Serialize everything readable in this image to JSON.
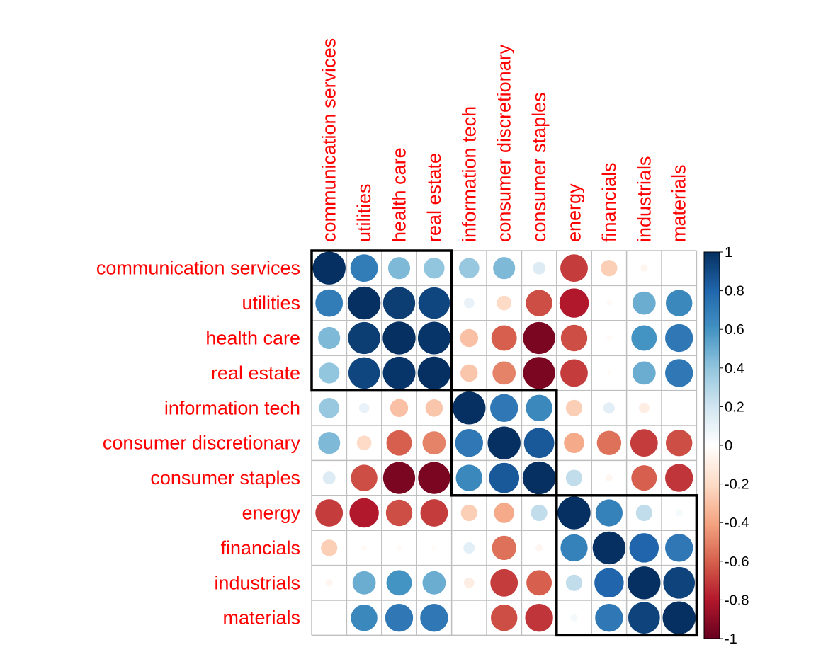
{
  "chart_data": {
    "type": "heatmap",
    "variables": [
      "communication services",
      "utilities",
      "health care",
      "real estate",
      "information tech",
      "consumer discretionary",
      "consumer staples",
      "energy",
      "financials",
      "industrials",
      "materials"
    ],
    "matrix": [
      [
        1.0,
        0.7,
        0.45,
        0.4,
        0.38,
        0.45,
        0.15,
        -0.7,
        -0.25,
        -0.05,
        0.0
      ],
      [
        0.7,
        1.0,
        0.95,
        0.92,
        0.1,
        -0.2,
        -0.65,
        -0.8,
        -0.03,
        0.5,
        0.65
      ],
      [
        0.45,
        0.95,
        1.0,
        0.98,
        -0.3,
        -0.6,
        -0.95,
        -0.65,
        -0.03,
        0.6,
        0.72
      ],
      [
        0.4,
        0.92,
        0.98,
        1.0,
        -0.28,
        -0.5,
        -0.95,
        -0.7,
        -0.02,
        0.5,
        0.72
      ],
      [
        0.38,
        0.1,
        -0.3,
        -0.28,
        1.0,
        0.72,
        0.65,
        -0.25,
        0.12,
        -0.1,
        0.0
      ],
      [
        0.45,
        -0.2,
        -0.6,
        -0.5,
        0.72,
        1.0,
        0.85,
        -0.38,
        -0.55,
        -0.7,
        -0.65
      ],
      [
        0.15,
        -0.65,
        -0.95,
        -0.95,
        0.65,
        0.85,
        1.0,
        0.25,
        -0.05,
        -0.6,
        -0.72
      ],
      [
        -0.7,
        -0.8,
        -0.65,
        -0.7,
        -0.25,
        -0.38,
        0.25,
        1.0,
        0.68,
        0.25,
        0.05
      ],
      [
        -0.25,
        -0.03,
        -0.03,
        -0.02,
        0.12,
        -0.55,
        -0.05,
        0.68,
        1.0,
        0.8,
        0.72
      ],
      [
        -0.05,
        0.5,
        0.6,
        0.5,
        -0.1,
        -0.7,
        -0.6,
        0.25,
        0.8,
        1.0,
        0.93
      ],
      [
        0.0,
        0.65,
        0.72,
        0.72,
        0.0,
        -0.65,
        -0.72,
        0.05,
        0.72,
        0.93,
        1.0
      ]
    ],
    "clusters": [
      [
        0,
        3
      ],
      [
        4,
        6
      ],
      [
        7,
        10
      ]
    ],
    "colorbar": {
      "range": [
        -1,
        1
      ],
      "ticks": [
        "1",
        "0.8",
        "0.6",
        "0.4",
        "0.2",
        "0",
        "-0.2",
        "-0.4",
        "-0.6",
        "-0.8",
        "-1"
      ],
      "colors": {
        "neg_strong": "#67001f",
        "neg_mid": "#d6604d",
        "neutral": "#ffffff",
        "pos_mid": "#4393c3",
        "pos_strong": "#053061"
      }
    },
    "label_color": "#ff0000",
    "grid": true
  }
}
